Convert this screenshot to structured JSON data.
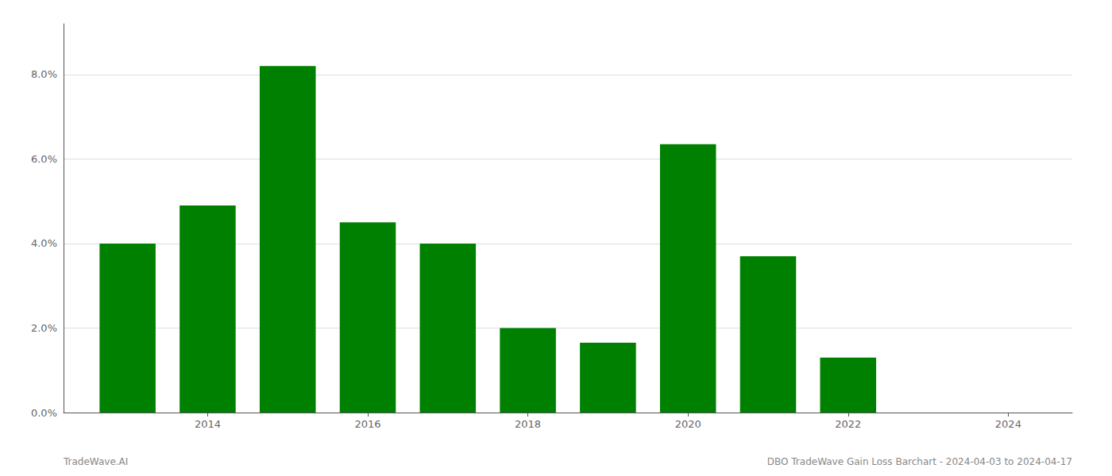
{
  "chart_data": {
    "type": "bar",
    "title": "DBO TradeWave Gain Loss Barchart - 2024-04-03 to 2024-04-17",
    "annotations": [
      "TradeWave.AI"
    ],
    "x": [
      2013,
      2014,
      2015,
      2016,
      2017,
      2018,
      2019,
      2020,
      2021,
      2022,
      2023
    ],
    "values": [
      0.04,
      0.049,
      0.082,
      0.045,
      0.04,
      0.02,
      0.0165,
      0.0635,
      0.037,
      0.013,
      0.0
    ],
    "color": "#008000",
    "xlim": [
      2012.2,
      2024.8
    ],
    "xticks": [
      2014,
      2016,
      2018,
      2020,
      2022,
      2024
    ],
    "ylim": [
      0.0,
      0.092
    ],
    "yticks": [
      {
        "value": 0.0,
        "label": "0.0%"
      },
      {
        "value": 0.02,
        "label": "2.0%"
      },
      {
        "value": 0.04,
        "label": "4.0%"
      },
      {
        "value": 0.06,
        "label": "6.0%"
      },
      {
        "value": 0.08,
        "label": "8.0%"
      }
    ],
    "grid": true
  }
}
